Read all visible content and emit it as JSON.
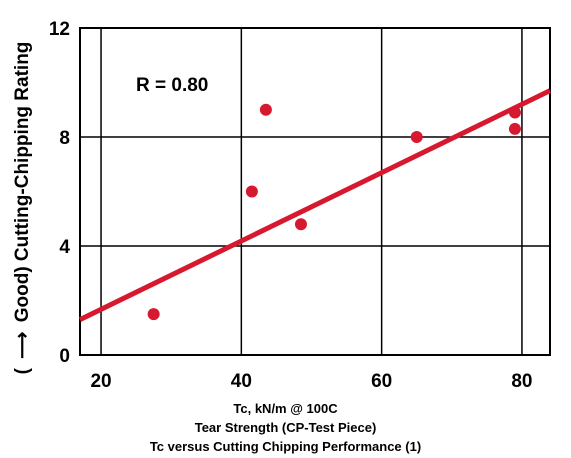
{
  "chart_data": {
    "type": "scatter",
    "xlabel_lines": [
      "Tc, kN/m @ 100C",
      "Tear Strength (CP-Test Piece)",
      "Tc versus Cutting Chipping Performance (1)"
    ],
    "ylabel_arrow": "⟶",
    "ylabel_open": "(",
    "ylabel": "Good) Cutting-Chipping Rating",
    "annotation": "R = 0.80",
    "xlim": [
      17,
      84
    ],
    "ylim": [
      0,
      12
    ],
    "x_ticks": [
      20,
      40,
      60,
      80
    ],
    "y_ticks": [
      0,
      4,
      8,
      12
    ],
    "grid": true,
    "points": [
      {
        "x": 27.5,
        "y": 1.5
      },
      {
        "x": 41.5,
        "y": 6.0
      },
      {
        "x": 43.5,
        "y": 9.0
      },
      {
        "x": 48.5,
        "y": 4.8
      },
      {
        "x": 65,
        "y": 8.0
      },
      {
        "x": 79,
        "y": 8.9
      },
      {
        "x": 79,
        "y": 8.3
      }
    ],
    "trendline": [
      {
        "x": 17,
        "y": 1.3
      },
      {
        "x": 84,
        "y": 9.7
      }
    ],
    "colors": {
      "marker": "#d7192f",
      "line": "#d7192f",
      "grid": "#000000"
    }
  }
}
